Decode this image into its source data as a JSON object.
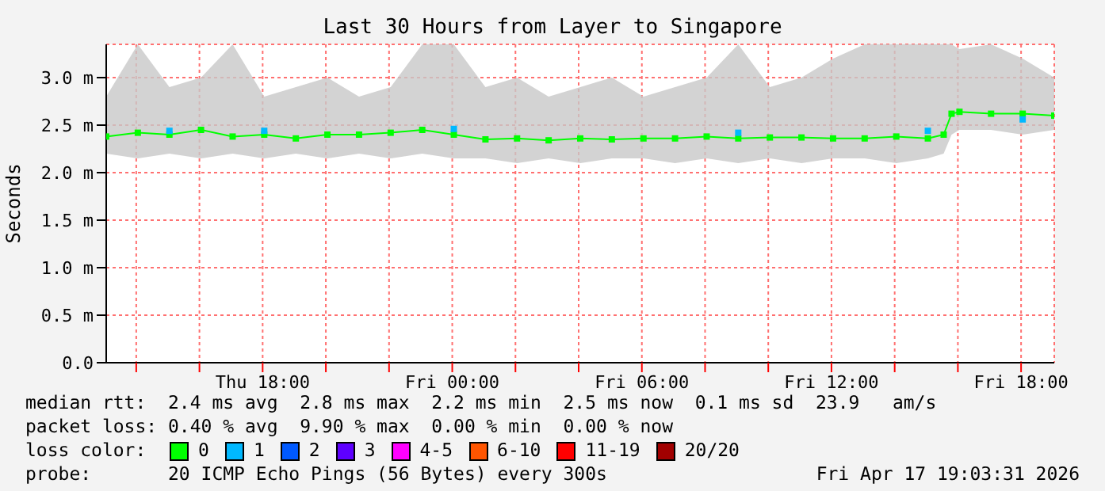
{
  "chart_data": {
    "type": "line",
    "title": "Last 30 Hours from Layer to Singapore",
    "ylabel": "Seconds",
    "x": [
      "2026-04-16T13:03",
      "2026-04-16T14:03",
      "2026-04-16T15:03",
      "2026-04-16T16:03",
      "2026-04-16T17:03",
      "2026-04-16T18:03",
      "2026-04-16T19:03",
      "2026-04-16T20:03",
      "2026-04-16T21:03",
      "2026-04-16T22:03",
      "2026-04-16T23:03",
      "2026-04-17T00:03",
      "2026-04-17T01:03",
      "2026-04-17T02:03",
      "2026-04-17T03:03",
      "2026-04-17T04:03",
      "2026-04-17T05:03",
      "2026-04-17T06:03",
      "2026-04-17T07:03",
      "2026-04-17T08:03",
      "2026-04-17T09:03",
      "2026-04-17T10:03",
      "2026-04-17T11:03",
      "2026-04-17T12:03",
      "2026-04-17T13:03",
      "2026-04-17T14:03",
      "2026-04-17T15:03",
      "2026-04-17T15:33",
      "2026-04-17T15:48",
      "2026-04-17T16:03",
      "2026-04-17T17:03",
      "2026-04-17T18:03",
      "2026-04-17T19:03"
    ],
    "series": [
      {
        "name": "0",
        "color": "#00ff00",
        "values": [
          2.38,
          2.42,
          2.4,
          2.45,
          2.38,
          2.4,
          2.36,
          2.4,
          2.4,
          2.42,
          2.45,
          2.4,
          2.35,
          2.36,
          2.34,
          2.36,
          2.35,
          2.36,
          2.36,
          2.38,
          2.36,
          2.37,
          2.37,
          2.36,
          2.36,
          2.38,
          2.36,
          2.4,
          2.62,
          2.64,
          2.62,
          2.62,
          2.6
        ],
        "lower": [
          2.2,
          2.15,
          2.2,
          2.15,
          2.2,
          2.15,
          2.2,
          2.15,
          2.2,
          2.15,
          2.2,
          2.15,
          2.15,
          2.1,
          2.15,
          2.1,
          2.15,
          2.15,
          2.1,
          2.15,
          2.1,
          2.15,
          2.1,
          2.15,
          2.15,
          2.1,
          2.15,
          2.2,
          2.4,
          2.45,
          2.45,
          2.4,
          2.45
        ],
        "upper": [
          2.8,
          3.35,
          2.9,
          3.0,
          3.35,
          2.8,
          2.9,
          3.0,
          2.8,
          2.9,
          3.35,
          3.35,
          2.9,
          3.0,
          2.8,
          2.9,
          3.0,
          2.8,
          2.9,
          3.0,
          3.35,
          2.9,
          3.0,
          3.2,
          3.35,
          3.35,
          3.35,
          3.35,
          3.35,
          3.3,
          3.35,
          3.2,
          3.0
        ]
      },
      {
        "name": "1",
        "color": "#00b8ff",
        "type": "scatter",
        "values": [
          null,
          null,
          2.44,
          null,
          null,
          2.44,
          null,
          null,
          null,
          null,
          null,
          2.46,
          null,
          null,
          null,
          null,
          null,
          null,
          null,
          null,
          2.42,
          null,
          null,
          null,
          null,
          null,
          2.44,
          null,
          null,
          null,
          null,
          2.56,
          null
        ]
      },
      {
        "name": "2",
        "color": "#0059ff",
        "type": "scatter",
        "values": [
          null,
          null,
          null,
          null,
          null,
          null,
          null,
          null,
          null,
          null,
          null,
          null,
          null,
          null,
          null,
          null,
          null,
          null,
          null,
          null,
          null,
          null,
          null,
          null,
          null,
          null,
          null,
          null,
          null,
          null,
          null,
          null,
          null
        ]
      },
      {
        "name": "3",
        "color": "#5e00ff",
        "type": "scatter",
        "values": [
          null,
          null,
          null,
          null,
          null,
          null,
          null,
          null,
          null,
          null,
          null,
          null,
          null,
          null,
          null,
          null,
          null,
          null,
          null,
          null,
          null,
          null,
          null,
          null,
          null,
          null,
          null,
          null,
          null,
          null,
          null,
          null,
          null
        ]
      },
      {
        "name": "4-5",
        "color": "#ff00ff",
        "type": "scatter",
        "values": [
          null,
          null,
          null,
          null,
          null,
          null,
          null,
          null,
          null,
          null,
          null,
          null,
          null,
          null,
          null,
          null,
          null,
          null,
          null,
          null,
          null,
          null,
          null,
          null,
          null,
          null,
          null,
          null,
          null,
          null,
          null,
          null,
          null
        ]
      },
      {
        "name": "6-10",
        "color": "#ff5500",
        "type": "scatter",
        "values": [
          null,
          null,
          null,
          null,
          null,
          null,
          null,
          null,
          null,
          null,
          null,
          null,
          null,
          null,
          null,
          null,
          null,
          null,
          null,
          null,
          null,
          null,
          null,
          null,
          null,
          null,
          null,
          null,
          null,
          null,
          null,
          null,
          null
        ]
      },
      {
        "name": "11-19",
        "color": "#ff0000",
        "type": "scatter",
        "values": [
          null,
          null,
          null,
          null,
          null,
          null,
          null,
          null,
          null,
          null,
          null,
          null,
          null,
          null,
          null,
          null,
          null,
          null,
          null,
          null,
          null,
          null,
          null,
          null,
          null,
          null,
          null,
          null,
          null,
          null,
          null,
          null,
          null
        ]
      },
      {
        "name": "20/20",
        "color": "#a10000",
        "type": "scatter",
        "values": [
          null,
          null,
          null,
          null,
          null,
          null,
          null,
          null,
          null,
          null,
          null,
          null,
          null,
          null,
          null,
          null,
          null,
          null,
          null,
          null,
          null,
          null,
          null,
          null,
          null,
          null,
          null,
          null,
          null,
          null,
          null,
          null,
          null
        ]
      }
    ],
    "legend_title": "loss color:",
    "legend": "bottom",
    "marker": "square",
    "grid": true,
    "xlim": [
      "2026-04-16T13:03",
      "2026-04-17T19:03"
    ],
    "xticks": [
      {
        "value": "2026-04-16T14:00",
        "label": null
      },
      {
        "value": "2026-04-16T16:00",
        "label": null
      },
      {
        "value": "2026-04-16T18:00",
        "label": "Thu 18:00"
      },
      {
        "value": "2026-04-16T20:00",
        "label": null
      },
      {
        "value": "2026-04-16T22:00",
        "label": null
      },
      {
        "value": "2026-04-17T00:00",
        "label": "Fri 00:00"
      },
      {
        "value": "2026-04-17T02:00",
        "label": null
      },
      {
        "value": "2026-04-17T04:00",
        "label": null
      },
      {
        "value": "2026-04-17T06:00",
        "label": "Fri 06:00"
      },
      {
        "value": "2026-04-17T08:00",
        "label": null
      },
      {
        "value": "2026-04-17T10:00",
        "label": null
      },
      {
        "value": "2026-04-17T12:00",
        "label": "Fri 12:00"
      },
      {
        "value": "2026-04-17T14:00",
        "label": null
      },
      {
        "value": "2026-04-17T16:00",
        "label": null
      },
      {
        "value": "2026-04-17T18:00",
        "label": "Fri 18:00"
      }
    ],
    "ylim": [
      0,
      3.35
    ],
    "yticks": [
      {
        "value": 0,
        "label": "0.0"
      },
      {
        "value": 0.5,
        "label": "0.5 m"
      },
      {
        "value": 1,
        "label": "1.0 m"
      },
      {
        "value": 1.5,
        "label": "1.5 m"
      },
      {
        "value": 2,
        "label": "2.0 m"
      },
      {
        "value": 2.5,
        "label": "2.5 m"
      },
      {
        "value": 3,
        "label": "3.0 m"
      }
    ],
    "annotations": [
      "median rtt:  2.4 ms avg  2.8 ms max  2.2 ms min  2.5 ms now  0.1 ms sd  23.9   am/s",
      "packet loss: 0.40 % avg  9.90 % max  0.00 % min  0.00 % now",
      "probe:       20 ICMP Echo Pings (56 Bytes) every 300s",
      "Fri Apr 17 19:03:31 2026"
    ]
  }
}
